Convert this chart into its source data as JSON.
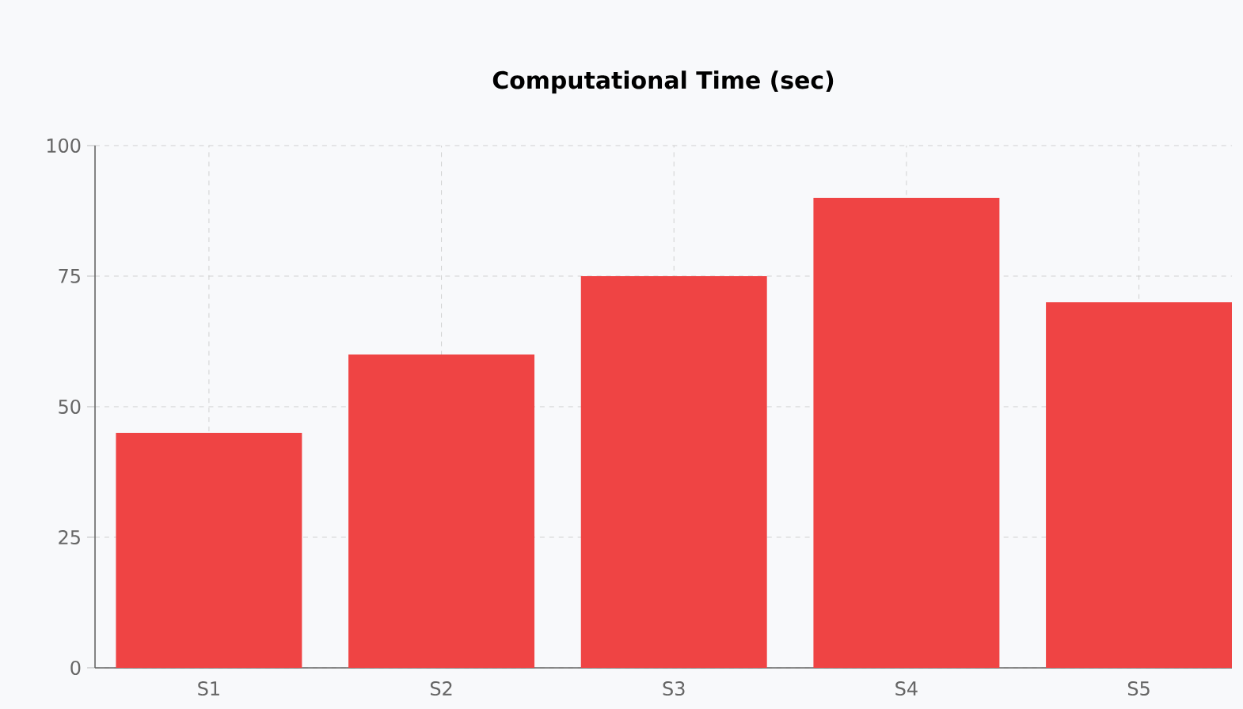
{
  "chart_data": {
    "type": "bar",
    "title": "Computational Time (sec)",
    "categories": [
      "S1",
      "S2",
      "S3",
      "S4",
      "S5"
    ],
    "values": [
      45,
      60,
      75,
      90,
      70
    ],
    "color": "#ef4444",
    "ylim": [
      0,
      100
    ],
    "yticks": [
      0,
      25,
      50,
      75,
      100
    ],
    "grid": true
  }
}
